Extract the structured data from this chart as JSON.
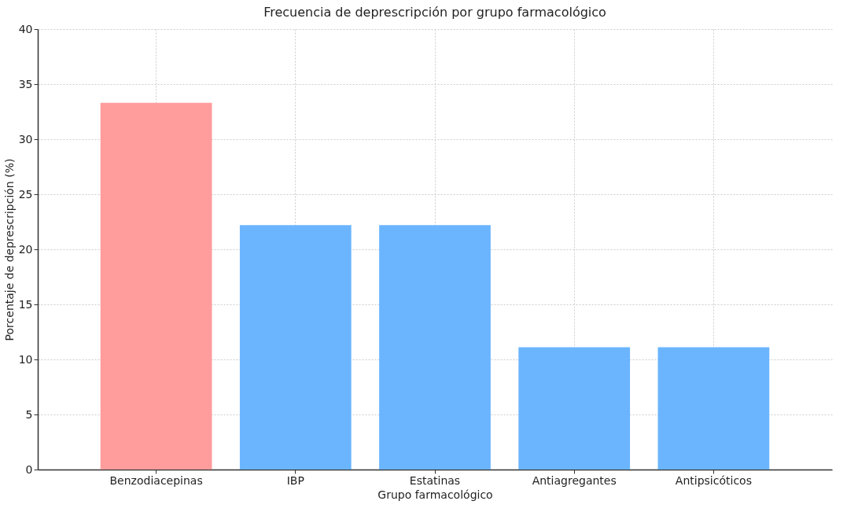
{
  "chart_data": {
    "type": "bar",
    "title": "Frecuencia de deprescripción por grupo farmacológico",
    "xlabel": "Grupo farmacológico",
    "ylabel": "Porcentaje de deprescripción (%)",
    "categories": [
      "Benzodiacepinas",
      "IBP",
      "Estatinas",
      "Antiagregantes",
      "Antipsicóticos"
    ],
    "values": [
      33.3,
      22.2,
      22.2,
      11.1,
      11.1
    ],
    "colors": [
      "#ff9999",
      "#66b3ff",
      "#66b3ff",
      "#66b3ff",
      "#66b3ff"
    ],
    "ylim": [
      0,
      40
    ],
    "yticks": [
      0,
      5,
      10,
      15,
      20,
      25,
      30,
      35,
      40
    ],
    "grid": true
  }
}
